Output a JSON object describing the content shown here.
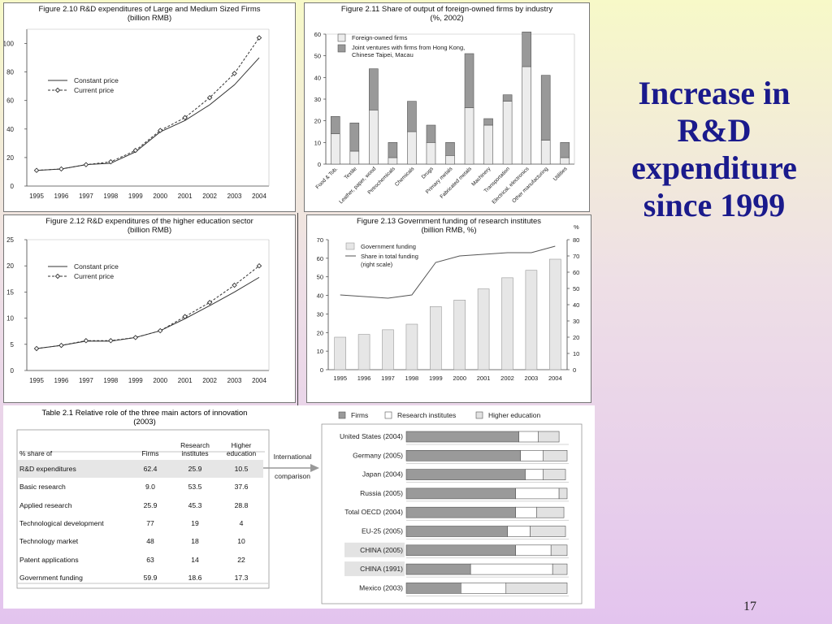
{
  "slide": {
    "heading_lines": [
      "Increase in",
      "R&D",
      "expenditure",
      "since 1999"
    ],
    "page_number": "17"
  },
  "chart_data": [
    {
      "id": "fig210",
      "type": "line",
      "title": "Figure 2.10 R&D expenditures of Large and Medium Sized Firms",
      "subtitle": "(billion RMB)",
      "x": [
        "1995",
        "1996",
        "1997",
        "1998",
        "1999",
        "2000",
        "2001",
        "2002",
        "2003",
        "2004"
      ],
      "ylim": [
        0,
        110
      ],
      "yticks": [
        0,
        20,
        40,
        60,
        80,
        100
      ],
      "series": [
        {
          "name": "Constant price",
          "values": [
            11,
            12,
            15,
            16,
            24,
            38,
            46,
            57,
            71,
            90
          ],
          "style": "solid"
        },
        {
          "name": "Current price",
          "values": [
            11,
            12,
            15,
            17,
            25,
            39,
            48,
            62,
            79,
            104
          ],
          "style": "dashed-diamond"
        }
      ]
    },
    {
      "id": "fig211",
      "type": "bar",
      "stacked": true,
      "title": "Figure 2.11 Share of output of foreign-owned firms by industry",
      "subtitle": "(%, 2002)",
      "ylim": [
        0,
        60
      ],
      "yticks": [
        0,
        10,
        20,
        30,
        40,
        50,
        60
      ],
      "categories": [
        "Food & Tob.",
        "Textile",
        "Leather, paper, wood",
        "Petrochemicals",
        "Chemicals",
        "Drugs",
        "Primary metals",
        "Fabricated metals",
        "Machinery",
        "Transportation",
        "Electrical, electronics",
        "Other manufacturing",
        "Utilities"
      ],
      "series": [
        {
          "name": "Foreign-owned firms",
          "values": [
            14,
            6,
            25,
            3,
            15,
            10,
            4,
            26,
            18,
            29,
            45,
            11,
            3
          ],
          "color": "#ececec"
        },
        {
          "name": "Joint ventures with firms from Hong Kong, Chinese Taipei, Macau",
          "values": [
            8,
            13,
            19,
            7,
            14,
            8,
            6,
            25,
            3,
            3,
            16,
            30,
            7
          ],
          "color": "#999999"
        }
      ]
    },
    {
      "id": "fig212",
      "type": "line",
      "title": "Figure 2.12 R&D expenditures of the higher education sector",
      "subtitle": "(billion RMB)",
      "x": [
        "1995",
        "1996",
        "1997",
        "1998",
        "1999",
        "2000",
        "2001",
        "2002",
        "2003",
        "2004"
      ],
      "ylim": [
        0,
        25
      ],
      "yticks": [
        0,
        5,
        10,
        15,
        20,
        25
      ],
      "series": [
        {
          "name": "Constant price",
          "values": [
            4.2,
            4.8,
            5.6,
            5.6,
            6.3,
            7.6,
            9.9,
            12.4,
            15.0,
            17.8
          ],
          "style": "solid"
        },
        {
          "name": "Current price",
          "values": [
            4.2,
            4.8,
            5.7,
            5.7,
            6.3,
            7.6,
            10.3,
            13.0,
            16.3,
            20.0
          ],
          "style": "dashed-diamond"
        }
      ]
    },
    {
      "id": "fig213",
      "type": "bar+line",
      "title": "Figure 2.13 Government funding of research institutes",
      "subtitle": "(billion RMB, %)",
      "right_axis_unit": "%",
      "x": [
        "1995",
        "1996",
        "1997",
        "1998",
        "1999",
        "2000",
        "2001",
        "2002",
        "2003",
        "2004"
      ],
      "ylim": [
        0,
        70
      ],
      "yticks": [
        0,
        10,
        20,
        30,
        40,
        50,
        60,
        70
      ],
      "ylim_right": [
        0,
        80
      ],
      "yticks_right": [
        0,
        10,
        20,
        30,
        40,
        50,
        60,
        70,
        80
      ],
      "bars": {
        "name": "Government funding",
        "values": [
          17.5,
          19,
          21.5,
          24.5,
          34,
          37.5,
          43.5,
          49.5,
          53.5,
          59.5
        ]
      },
      "line": {
        "name": "Share in total funding",
        "name_line2": "(right scale)",
        "values": [
          46,
          45,
          44,
          46,
          66,
          70,
          71,
          72,
          72,
          76
        ]
      }
    },
    {
      "id": "comparison",
      "type": "bar",
      "stacked": true,
      "orientation": "horizontal",
      "legend": [
        "Firms",
        "Research institutes",
        "Higher education"
      ],
      "categories": [
        "United States (2004)",
        "Germany (2005)",
        "Japan (2004)",
        "Russia (2005)",
        "Total OECD (2004)",
        "EU-25 (2005)",
        "CHINA (2005)",
        "CHINA (1991)",
        "Mexico (2003)"
      ],
      "highlight": [
        "CHINA (2005)",
        "CHINA (1991)"
      ],
      "series": [
        {
          "name": "Firms",
          "values": [
            70,
            71,
            74,
            68,
            68,
            63,
            68,
            40,
            34
          ]
        },
        {
          "name": "Research institutes",
          "values": [
            12,
            14,
            11,
            27,
            13,
            14,
            22,
            51,
            28
          ]
        },
        {
          "name": "Higher education",
          "values": [
            13,
            15,
            14,
            5,
            17,
            22,
            10,
            9,
            38
          ]
        }
      ]
    }
  ],
  "table21": {
    "title": "Table 2.1 Relative role of the three main actors of innovation",
    "subtitle": "(2003)",
    "headers": [
      "% share of",
      "Firms",
      "Research institutes",
      "Higher education"
    ],
    "rows": [
      [
        "R&D expenditures",
        "62.4",
        "25.9",
        "10.5"
      ],
      [
        "Basic research",
        "9.0",
        "53.5",
        "37.6"
      ],
      [
        "Applied research",
        "25.9",
        "45.3",
        "28.8"
      ],
      [
        "Technological development",
        "77",
        "19",
        "4"
      ],
      [
        "Technology market",
        "48",
        "18",
        "10"
      ],
      [
        "Patent applications",
        "63",
        "14",
        "22"
      ],
      [
        "Government funding",
        "59.9",
        "18.6",
        "17.3"
      ]
    ],
    "arrow_label_1": "International",
    "arrow_label_2": "comparison"
  }
}
